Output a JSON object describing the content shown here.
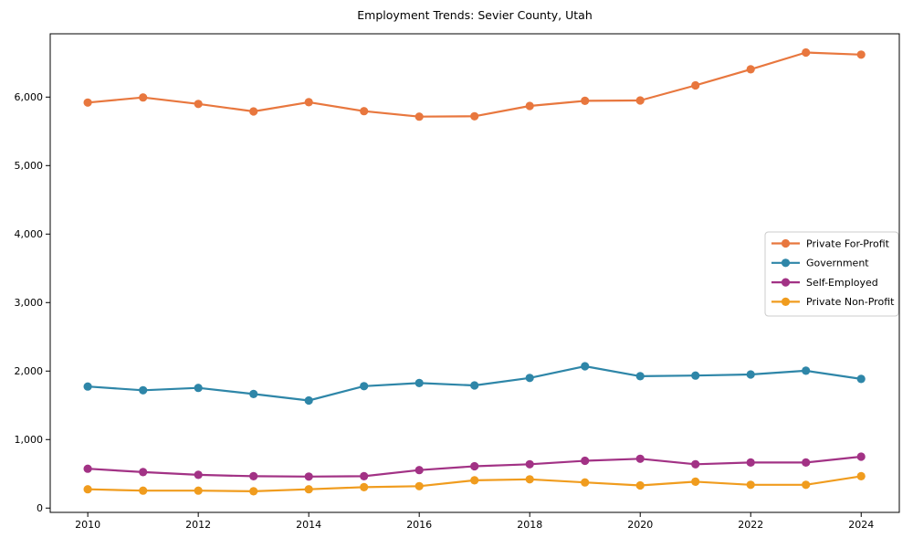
{
  "figure": {
    "background": "#ffffff",
    "text_color": "#000000",
    "spine_color": "#000000",
    "legend_border_color": "#cccccc"
  },
  "chart_data": {
    "type": "line",
    "title": "Employment Trends: Sevier County, Utah",
    "xlabel": "",
    "ylabel": "",
    "grid": false,
    "legend_position": "center-right",
    "x": [
      2010,
      2011,
      2012,
      2013,
      2014,
      2015,
      2016,
      2017,
      2018,
      2019,
      2020,
      2021,
      2022,
      2023,
      2024
    ],
    "xticks": [
      2010,
      2012,
      2014,
      2016,
      2018,
      2020,
      2022,
      2024
    ],
    "yticks": [
      0,
      1000,
      2000,
      3000,
      4000,
      5000,
      6000
    ],
    "xlim": [
      2009.32,
      2024.69
    ],
    "ylim": [
      -63,
      6924
    ],
    "series": [
      {
        "name": "Private For-Profit",
        "color": "#e8773e",
        "values": [
          5920,
          5995,
          5900,
          5790,
          5925,
          5795,
          5715,
          5720,
          5870,
          5945,
          5950,
          6170,
          6405,
          6650,
          6620
        ]
      },
      {
        "name": "Government",
        "color": "#2e86a8",
        "values": [
          1775,
          1720,
          1755,
          1665,
          1570,
          1780,
          1825,
          1790,
          1900,
          2070,
          1925,
          1935,
          1950,
          2005,
          1885
        ]
      },
      {
        "name": "Self-Employed",
        "color": "#a23285",
        "values": [
          575,
          525,
          485,
          465,
          460,
          465,
          555,
          610,
          640,
          690,
          720,
          640,
          665,
          665,
          750
        ]
      },
      {
        "name": "Private Non-Profit",
        "color": "#f09c1e",
        "values": [
          275,
          255,
          255,
          245,
          275,
          305,
          320,
          405,
          420,
          375,
          330,
          385,
          340,
          340,
          465
        ]
      }
    ]
  }
}
